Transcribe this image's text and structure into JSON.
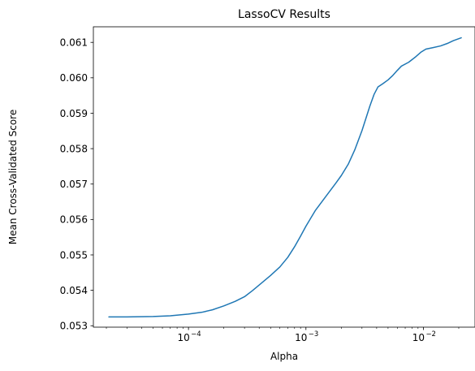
{
  "chart_data": {
    "type": "line",
    "title": "LassoCV Results",
    "xlabel": "Alpha",
    "ylabel": "Mean Cross-Validated Score",
    "xscale": "log",
    "xlim": [
      1.55e-05,
      0.0275
    ],
    "ylim": [
      0.05296,
      0.06144
    ],
    "grid": false,
    "legend": "none",
    "x_ticks": [
      {
        "value": 0.0001,
        "base": "10",
        "exp": "−4"
      },
      {
        "value": 0.001,
        "base": "10",
        "exp": "−3"
      },
      {
        "value": 0.01,
        "base": "10",
        "exp": "−2"
      }
    ],
    "y_ticks": [
      0.053,
      0.054,
      0.055,
      0.056,
      0.057,
      0.058,
      0.059,
      0.06,
      0.061
    ],
    "y_tick_labels": [
      "0.053",
      "0.054",
      "0.055",
      "0.056",
      "0.057",
      "0.058",
      "0.059",
      "0.060",
      "0.061"
    ],
    "series": [
      {
        "color": "#1f77b4",
        "points": [
          [
            2.1e-05,
            0.05325
          ],
          [
            3e-05,
            0.05325
          ],
          [
            5e-05,
            0.05326
          ],
          [
            7e-05,
            0.05328
          ],
          [
            0.0001,
            0.05333
          ],
          [
            0.00013,
            0.05338
          ],
          [
            0.00016,
            0.05345
          ],
          [
            0.0002,
            0.05356
          ],
          [
            0.00025,
            0.05369
          ],
          [
            0.0003,
            0.05382
          ],
          [
            0.00035,
            0.05399
          ],
          [
            0.0004,
            0.05415
          ],
          [
            0.0005,
            0.05442
          ],
          [
            0.0006,
            0.05466
          ],
          [
            0.0007,
            0.05493
          ],
          [
            0.0008,
            0.05523
          ],
          [
            0.0009,
            0.05553
          ],
          [
            0.001,
            0.05581
          ],
          [
            0.0012,
            0.05625
          ],
          [
            0.0015,
            0.05668
          ],
          [
            0.0018,
            0.05703
          ],
          [
            0.002,
            0.05724
          ],
          [
            0.0023,
            0.05757
          ],
          [
            0.0026,
            0.05796
          ],
          [
            0.003,
            0.05851
          ],
          [
            0.0035,
            0.0592
          ],
          [
            0.0038,
            0.05953
          ],
          [
            0.0041,
            0.05974
          ],
          [
            0.0045,
            0.05983
          ],
          [
            0.005,
            0.05994
          ],
          [
            0.0055,
            0.06007
          ],
          [
            0.006,
            0.06021
          ],
          [
            0.0065,
            0.06033
          ],
          [
            0.0075,
            0.06044
          ],
          [
            0.0085,
            0.06058
          ],
          [
            0.0095,
            0.06072
          ],
          [
            0.0105,
            0.06081
          ],
          [
            0.012,
            0.06085
          ],
          [
            0.014,
            0.0609
          ],
          [
            0.016,
            0.06097
          ],
          [
            0.018,
            0.06105
          ],
          [
            0.021,
            0.06113
          ]
        ]
      }
    ]
  }
}
